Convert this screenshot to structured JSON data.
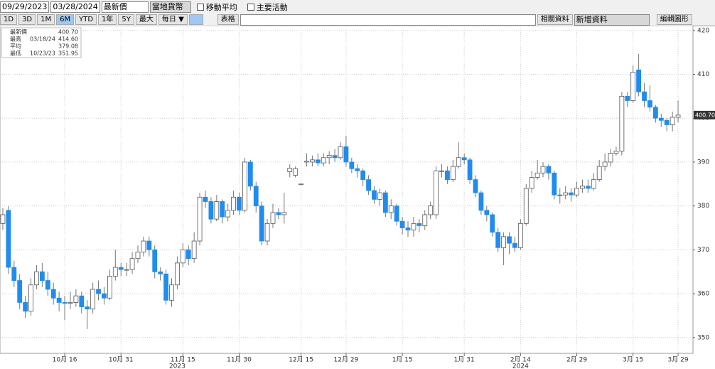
{
  "toolbar": {
    "start_date": "09/29/2023",
    "end_date": "03/28/2024",
    "price_field": "最新價",
    "currency": "當地貨幣",
    "moving_average": "移動平均",
    "key_events": "主要活動",
    "ranges": [
      "1D",
      "3D",
      "1M",
      "6M",
      "YTD",
      "1年",
      "5Y",
      "最大"
    ],
    "frequency": "每日 ▼",
    "table": "表格",
    "related": "相關資料",
    "add_data": "新增資料",
    "edit_chart": "編輯圖形"
  },
  "chart_data": {
    "type": "candlestick",
    "stats": [
      {
        "name": "最新價",
        "value": 400.7,
        "value_label": "400.70"
      },
      {
        "name": "最高",
        "date": "03/18/24",
        "value": 414.6,
        "value_label": "414.60"
      },
      {
        "name": "平均",
        "value": 379.08
      },
      {
        "name": "最低",
        "date": "10/23/23",
        "value": 351.95
      }
    ],
    "year_labels": [
      "2023",
      "2024"
    ],
    "categories": [
      null,
      null,
      null,
      null,
      null,
      null,
      null,
      null,
      null,
      null,
      null,
      "10月 16",
      null,
      null,
      null,
      null,
      null,
      null,
      null,
      null,
      null,
      "10月 31",
      null,
      null,
      null,
      null,
      null,
      null,
      null,
      null,
      null,
      null,
      "11月 15",
      null,
      null,
      null,
      null,
      null,
      null,
      null,
      null,
      null,
      "11月 30",
      null,
      null,
      null,
      null,
      null,
      null,
      null,
      null,
      null,
      null,
      "12月 15",
      null,
      null,
      null,
      null,
      null,
      null,
      null,
      "12月 29",
      null,
      null,
      null,
      null,
      null,
      null,
      null,
      null,
      null,
      "1月 15",
      null,
      null,
      null,
      null,
      null,
      null,
      null,
      null,
      null,
      null,
      "1月 31",
      null,
      null,
      null,
      null,
      null,
      null,
      null,
      null,
      null,
      "2月 14",
      null,
      null,
      null,
      null,
      null,
      null,
      null,
      null,
      null,
      "2月 29",
      null,
      null,
      null,
      null,
      null,
      null,
      null,
      null,
      null,
      "3月 15",
      null,
      null,
      null,
      null,
      null,
      null,
      null,
      "3月 29"
    ],
    "open": [
      376,
      379,
      366,
      363,
      358,
      356,
      362,
      365,
      363,
      361,
      359,
      358,
      357.8,
      358,
      359.5,
      357,
      356.5,
      361,
      360,
      359,
      364,
      366,
      365.5,
      365.5,
      368,
      369.5,
      372,
      370,
      365,
      364.5,
      358.5,
      362,
      367,
      370,
      368,
      372,
      382,
      381,
      377,
      381,
      377.5,
      379,
      382,
      379,
      390,
      384.5,
      380,
      372,
      376,
      378.5,
      378,
      387.8,
      387,
      385,
      390,
      390,
      390.5,
      389.8,
      391,
      391.5,
      391,
      393.5,
      390,
      388.5,
      388,
      386,
      383.5,
      381.5,
      383,
      378.5,
      380,
      376.5,
      375,
      374.5,
      376,
      375.5,
      378,
      378,
      388,
      388,
      386,
      389,
      391,
      390.5,
      386,
      383,
      379,
      378,
      374,
      370.5,
      373,
      371.5,
      370.5,
      376,
      384,
      386.5,
      387.5,
      389,
      387.5,
      382.5,
      382.5,
      383,
      382.5,
      384,
      384.5,
      384,
      386,
      389,
      390,
      392,
      392.5,
      405,
      404,
      411,
      406,
      404,
      402.5,
      400,
      399.5,
      398.5,
      400.2
    ],
    "high": [
      379.5,
      380,
      367.5,
      364.5,
      359.5,
      363.5,
      366.5,
      367,
      365,
      362.5,
      360.5,
      359.5,
      360.5,
      361,
      360.5,
      358.5,
      362.5,
      363,
      361.5,
      365.5,
      370,
      367,
      367,
      369.5,
      371,
      373,
      373,
      371,
      366,
      365.5,
      363.5,
      368.5,
      371.5,
      371,
      374,
      383,
      383.5,
      382,
      382.5,
      381.5,
      380.5,
      383.5,
      383,
      391,
      390.5,
      385.5,
      381,
      377,
      380.5,
      379.5,
      383,
      389.5,
      389,
      385,
      392,
      391.5,
      392,
      392,
      392.5,
      393,
      394.5,
      396,
      391,
      389.5,
      388.5,
      387,
      384.5,
      384,
      383.5,
      381.5,
      380.5,
      377.5,
      376.5,
      377.5,
      377,
      379,
      381,
      389,
      389.5,
      389,
      390.5,
      394.5,
      392,
      391,
      387,
      383.5,
      380,
      378.5,
      375,
      374,
      374,
      373,
      377,
      385,
      388,
      390.5,
      390,
      389.5,
      388,
      384,
      384.5,
      384,
      385.5,
      386,
      386,
      387.5,
      390.5,
      392,
      393,
      393.5,
      406,
      406,
      412,
      414.6,
      408,
      407.5,
      403,
      401,
      400,
      401.5,
      404
    ],
    "low": [
      374.5,
      364.5,
      361.5,
      356.5,
      354.5,
      355,
      361,
      361.5,
      359.5,
      357.5,
      356,
      354,
      356.5,
      357,
      355.5,
      351.95,
      355.5,
      358.5,
      357.5,
      358.5,
      363,
      364,
      364,
      364.5,
      367,
      368.5,
      368.5,
      363.5,
      363,
      357.5,
      357,
      361,
      366,
      366.5,
      367,
      371,
      379.5,
      376,
      376.5,
      376,
      376.5,
      378,
      378,
      378.5,
      383.5,
      378.5,
      371,
      371,
      375,
      377,
      376,
      386.5,
      386.5,
      385,
      389,
      389,
      389,
      389,
      389.5,
      390,
      390.5,
      389,
      387.5,
      386.5,
      384.5,
      382.5,
      380.5,
      380,
      377.5,
      377,
      375.5,
      373.5,
      373,
      373,
      374,
      374.5,
      377,
      377,
      386.5,
      385,
      385.5,
      388.5,
      389.5,
      385,
      382,
      378,
      376.5,
      373,
      369.5,
      366.5,
      369,
      369.5,
      370,
      375.5,
      383,
      386,
      386.5,
      386,
      381.5,
      380.5,
      381.5,
      381,
      382,
      383,
      383,
      383.5,
      385.5,
      388,
      389,
      391.5,
      391.5,
      402.5,
      403.5,
      405,
      402.5,
      401.5,
      399,
      398,
      397,
      397,
      399
    ],
    "close": [
      378,
      366,
      363,
      358,
      356,
      362,
      365,
      363,
      361,
      359,
      358,
      357.8,
      358,
      359.5,
      357,
      356.5,
      361,
      360,
      359,
      364,
      366,
      365.5,
      365.5,
      368,
      369.5,
      372,
      370,
      365,
      364.5,
      358.5,
      362,
      367,
      370,
      368,
      372,
      382,
      381,
      377,
      381,
      377.5,
      379,
      382,
      379,
      390,
      384.5,
      380,
      372,
      376,
      378.5,
      378,
      378.5,
      388.6,
      388.5,
      385,
      390.2,
      390.5,
      389.8,
      391,
      391.5,
      391,
      393.5,
      390,
      388.5,
      388,
      386,
      383.5,
      381.5,
      383,
      378.5,
      380,
      376.5,
      375,
      374.5,
      376,
      375.5,
      378,
      380,
      388,
      388,
      386,
      389,
      391,
      390.5,
      386,
      383,
      379,
      378,
      374,
      370.5,
      373,
      371.5,
      370.5,
      376,
      384,
      386.5,
      387.5,
      389,
      387.5,
      382.5,
      382.5,
      383,
      382.5,
      384,
      384.5,
      384,
      386,
      389,
      390,
      392,
      392.5,
      405,
      404,
      410.5,
      406,
      404,
      402.5,
      400,
      399.5,
      398.5,
      400.2,
      400.7
    ],
    "up_color": "#ffffff",
    "down_color": "#1e8cf0",
    "ylim": [
      346.4,
      421.1
    ],
    "yticks": [
      350,
      360,
      370,
      380,
      390,
      400,
      410,
      420
    ],
    "grid": true
  }
}
